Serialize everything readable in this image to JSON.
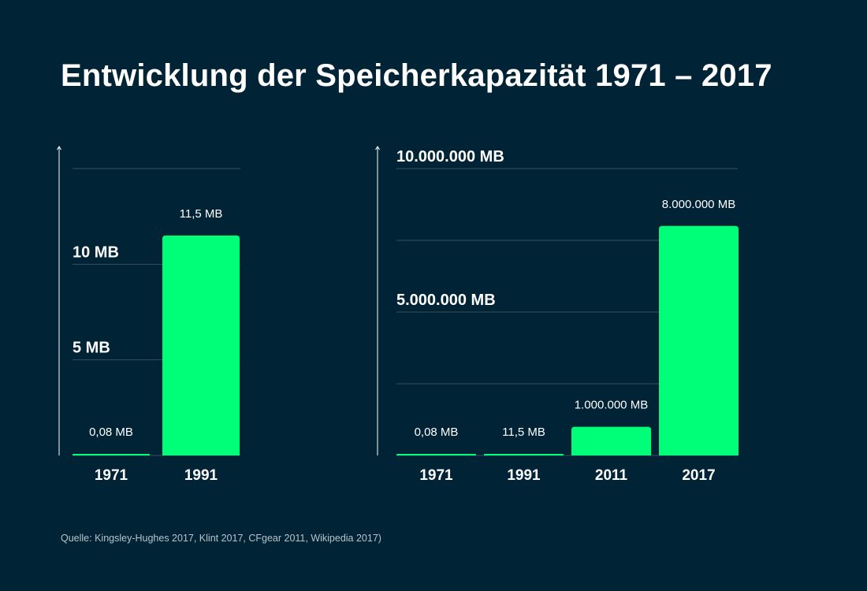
{
  "title": "Entwicklung der Speicherkapazität 1971 – 2017",
  "source": "Quelle: Kingsley-Hughes 2017, Klint 2017, CFgear 2011, Wikipedia 2017)",
  "colors": {
    "background": "#012336",
    "bar": "#00ff78",
    "text": "#ffffff",
    "gridline": "#35505f",
    "source_text": "#b7c3cb"
  },
  "chart_data": [
    {
      "type": "bar",
      "unit": "MB",
      "categories": [
        "1971",
        "1991"
      ],
      "values": [
        0.08,
        11.5
      ],
      "value_labels": [
        "0,08 MB",
        "11,5 MB"
      ],
      "ylim": [
        0,
        15
      ],
      "gridlines": [
        5,
        10,
        15
      ],
      "tick_labels": [
        {
          "value": 5,
          "label": "5 MB"
        },
        {
          "value": 10,
          "label": "10 MB"
        }
      ],
      "grid": true,
      "legend": "none"
    },
    {
      "type": "bar",
      "unit": "MB",
      "categories": [
        "1971",
        "1991",
        "2011",
        "2017"
      ],
      "values": [
        0.08,
        11.5,
        1000000,
        8000000
      ],
      "value_labels": [
        "0,08 MB",
        "11,5 MB",
        "1.000.000 MB",
        "8.000.000 MB"
      ],
      "ylim": [
        0,
        10000000
      ],
      "gridlines": [
        2500000,
        5000000,
        7500000,
        10000000
      ],
      "tick_labels": [
        {
          "value": 5000000,
          "label": "5.000.000 MB"
        },
        {
          "value": 10000000,
          "label": "10.000.000 MB"
        }
      ],
      "grid": true,
      "legend": "none"
    }
  ]
}
